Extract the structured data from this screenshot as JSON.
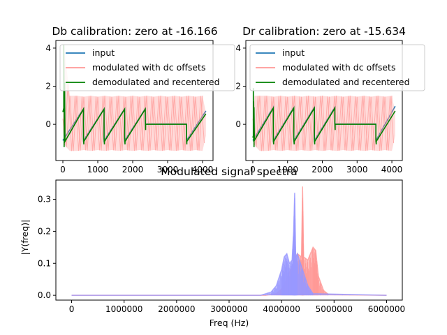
{
  "figure": {
    "background": "#ffffff"
  },
  "chart_data": [
    {
      "id": "db",
      "type": "line",
      "title": "Db calibration: zero at -16.166",
      "xlabel": "",
      "ylabel": "",
      "xlim": [
        -200,
        4300
      ],
      "ylim": [
        -1.9,
        4.4
      ],
      "xticks": [
        "0",
        "1000",
        "2000",
        "3000",
        "4000"
      ],
      "yticks": [
        "0",
        "2",
        "4"
      ],
      "legend": {
        "position": "top-right",
        "entries": [
          {
            "label": "input",
            "color": "#1f77b4"
          },
          {
            "label": "modulated with dc offsets",
            "color": "#ff9896"
          },
          {
            "label": "demodulated and recentered",
            "color": "#008000"
          }
        ]
      },
      "series": [
        {
          "name": "input",
          "color": "#1f77b4",
          "x": [
            0,
            590,
            590,
            1180,
            1180,
            1770,
            1770,
            2360,
            2360,
            3540,
            3540,
            4096
          ],
          "y": [
            -0.85,
            0.82,
            -0.85,
            0.82,
            -0.85,
            0.82,
            -0.85,
            0.82,
            0.02,
            0.02,
            -0.85,
            0.7
          ]
        },
        {
          "name": "modulated with dc offsets",
          "color": "#ff9896",
          "envelope": {
            "x": [
              0,
              50,
              200,
              400,
              600,
              800,
              1000,
              1200,
              1400,
              1600,
              1800,
              2000,
              2200,
              2400,
              2600,
              2800,
              3000,
              3200,
              3400,
              3600,
              3800,
              4000,
              4096
            ],
            "upper": [
              0.3,
              3.8,
              1.5,
              1.5,
              1.45,
              1.5,
              1.45,
              1.5,
              1.45,
              1.5,
              1.45,
              1.5,
              1.45,
              1.5,
              1.45,
              1.5,
              1.45,
              1.5,
              1.45,
              1.5,
              1.45,
              1.5,
              0.6
            ],
            "lower": [
              -0.3,
              -1.1,
              -1.4,
              -1.4,
              -1.35,
              -1.4,
              -1.35,
              -1.4,
              -1.35,
              -1.4,
              -1.35,
              -1.4,
              -1.35,
              -1.4,
              -1.35,
              -1.4,
              -1.35,
              -1.4,
              -1.35,
              -1.4,
              -1.35,
              -1.4,
              -0.6
            ],
            "ripple_period": 200
          }
        },
        {
          "name": "demodulated and recentered",
          "color": "#008000",
          "x": [
            0,
            25,
            25,
            35,
            35,
            50,
            50,
            60,
            60,
            590,
            590,
            600,
            600,
            1180,
            1180,
            1190,
            1190,
            1770,
            1770,
            1780,
            1780,
            2360,
            2360,
            2370,
            2370,
            3540,
            3540,
            3550,
            3550,
            4096
          ],
          "y": [
            0.65,
            0.85,
            4.2,
            0.8,
            -1.2,
            0.8,
            2.2,
            -0.7,
            -0.9,
            0.8,
            -0.75,
            -1.05,
            -0.9,
            0.8,
            -0.75,
            -1.05,
            -0.9,
            0.8,
            -0.75,
            -1.05,
            -0.9,
            0.8,
            0.2,
            -0.3,
            0.0,
            0.0,
            -0.75,
            -1.05,
            -0.9,
            0.55
          ]
        }
      ]
    },
    {
      "id": "dr",
      "type": "line",
      "title": "Dr calibration: zero at -15.634",
      "xlabel": "",
      "ylabel": "",
      "xlim": [
        -200,
        4300
      ],
      "ylim": [
        -1.9,
        4.4
      ],
      "xticks": [
        "0",
        "1000",
        "2000",
        "3000",
        "4000"
      ],
      "yticks": [
        "0",
        "2",
        "4"
      ],
      "legend": {
        "position": "top-right",
        "entries": [
          {
            "label": "input",
            "color": "#1f77b4"
          },
          {
            "label": "modulated with dc offsets",
            "color": "#ff9896"
          },
          {
            "label": "demodulated and recentered",
            "color": "#008000"
          }
        ]
      },
      "series": [
        {
          "name": "input",
          "color": "#1f77b4",
          "x": [
            0,
            590,
            590,
            1180,
            1180,
            1770,
            1770,
            2360,
            2360,
            3540,
            3540,
            4096
          ],
          "y": [
            -0.85,
            0.9,
            -0.85,
            0.9,
            -0.85,
            0.9,
            -0.85,
            0.9,
            0.02,
            0.02,
            -0.85,
            0.95
          ]
        },
        {
          "name": "modulated with dc offsets",
          "color": "#ff9896",
          "envelope": {
            "x": [
              0,
              50,
              200,
              400,
              600,
              800,
              1000,
              1200,
              1400,
              1600,
              1800,
              2000,
              2200,
              2400,
              2600,
              2800,
              3000,
              3200,
              3400,
              3600,
              3800,
              4000,
              4096
            ],
            "upper": [
              0.3,
              1.5,
              1.5,
              1.5,
              1.45,
              1.5,
              1.45,
              1.5,
              1.45,
              1.5,
              1.45,
              1.5,
              1.45,
              1.5,
              1.45,
              1.5,
              1.45,
              1.5,
              1.45,
              1.5,
              1.45,
              1.5,
              0.6
            ],
            "lower": [
              -0.3,
              -1.1,
              -1.4,
              -1.4,
              -1.35,
              -1.4,
              -1.35,
              -1.4,
              -1.35,
              -1.4,
              -1.35,
              -1.4,
              -1.35,
              -1.4,
              -1.35,
              -1.4,
              -1.35,
              -1.4,
              -1.35,
              -1.4,
              -1.35,
              -1.4,
              -0.6
            ],
            "ripple_period": 200
          }
        },
        {
          "name": "demodulated and recentered",
          "color": "#008000",
          "x": [
            0,
            15,
            15,
            25,
            25,
            35,
            35,
            45,
            45,
            590,
            590,
            600,
            600,
            1180,
            1180,
            1190,
            1190,
            1770,
            1770,
            1780,
            1780,
            2360,
            2360,
            2370,
            2370,
            3540,
            3540,
            3550,
            3550,
            4096
          ],
          "y": [
            -0.7,
            -0.6,
            1.9,
            -0.9,
            1.2,
            -1.2,
            0.9,
            -0.7,
            -0.85,
            0.85,
            -0.8,
            -1.05,
            -0.9,
            0.85,
            -0.8,
            -1.05,
            -0.9,
            0.85,
            -0.8,
            -1.05,
            -0.9,
            0.85,
            0.1,
            -0.3,
            0.0,
            0.0,
            -0.8,
            -1.05,
            -0.9,
            0.7
          ]
        }
      ]
    },
    {
      "id": "spectra",
      "type": "line",
      "title": "Modulated signal spectra",
      "xlabel": "Freq (Hz)",
      "ylabel": "|Y(freq)|",
      "xlim": [
        -300000,
        6300000
      ],
      "ylim": [
        -0.015,
        0.36
      ],
      "xticks": [
        "0",
        "1000000",
        "2000000",
        "3000000",
        "4000000",
        "5000000",
        "6000000"
      ],
      "yticks": [
        "0.0",
        "0.1",
        "0.2",
        "0.3"
      ],
      "series": [
        {
          "name": "",
          "color": "#ff9896",
          "baseline": 0.0,
          "x": [
            0,
            3700000,
            3900000,
            4000000,
            4100000,
            4200000,
            4300000,
            4380000,
            4400000,
            4420000,
            4500000,
            4600000,
            4650000,
            4700000,
            4800000,
            4900000,
            6000000
          ],
          "y": [
            0.0,
            0.0,
            0.005,
            0.02,
            0.05,
            0.09,
            0.13,
            0.12,
            0.34,
            0.12,
            0.11,
            0.15,
            0.14,
            0.06,
            0.015,
            0.002,
            0.0
          ]
        },
        {
          "name": "",
          "color": "#9999ff",
          "baseline": 0.0,
          "x": [
            0,
            3600000,
            3800000,
            3900000,
            4000000,
            4050000,
            4100000,
            4150000,
            4200000,
            4230000,
            4250000,
            4270000,
            4300000,
            4400000,
            4500000,
            4600000,
            6000000
          ],
          "y": [
            0.0,
            0.0,
            0.01,
            0.03,
            0.08,
            0.12,
            0.13,
            0.1,
            0.11,
            0.2,
            0.32,
            0.12,
            0.13,
            0.08,
            0.03,
            0.005,
            0.0
          ]
        }
      ]
    }
  ]
}
